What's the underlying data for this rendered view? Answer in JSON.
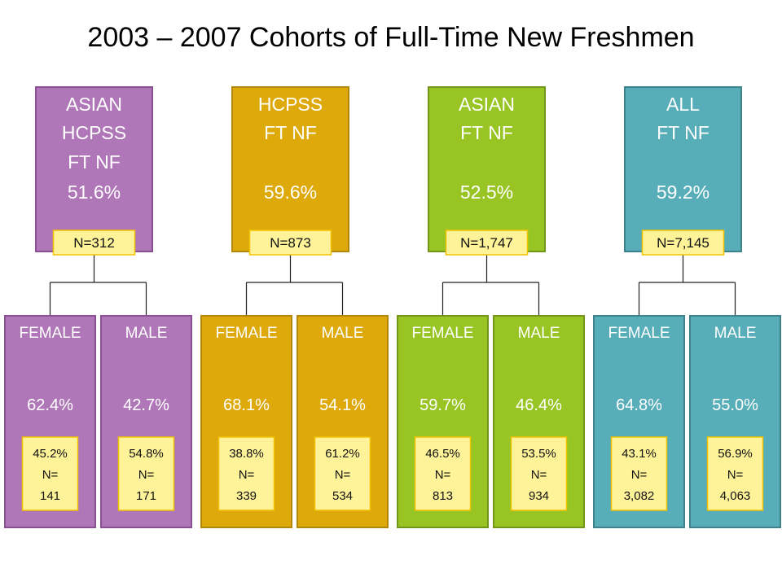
{
  "title": "2003 – 2007 Cohorts of Full-Time New Freshmen",
  "badge_color": "#fff399",
  "badge_border": "#f2c200",
  "groups": [
    {
      "color": "#b077b8",
      "border": "#8b4f93",
      "lines": [
        "ASIAN",
        "HCPSS",
        "FT NF",
        "51.6%"
      ],
      "n": "N=312",
      "children": [
        {
          "label": "FEMALE",
          "pct": "62.4%",
          "share": "45.2%",
          "n_label": "N=",
          "n": "141"
        },
        {
          "label": "MALE",
          "pct": "42.7%",
          "share": "54.8%",
          "n_label": "N=",
          "n": "171"
        }
      ]
    },
    {
      "color": "#dda90b",
      "border": "#b3870a",
      "lines": [
        "HCPSS",
        "FT NF",
        "",
        "59.6%"
      ],
      "n": "N=873",
      "children": [
        {
          "label": "FEMALE",
          "pct": "68.1%",
          "share": "38.8%",
          "n_label": "N=",
          "n": "339"
        },
        {
          "label": "MALE",
          "pct": "54.1%",
          "share": "61.2%",
          "n_label": "N=",
          "n": "534"
        }
      ]
    },
    {
      "color": "#98c524",
      "border": "#73961a",
      "lines": [
        "ASIAN",
        "FT NF",
        "",
        "52.5%"
      ],
      "n": "N=1,747",
      "children": [
        {
          "label": "FEMALE",
          "pct": "59.7%",
          "share": "46.5%",
          "n_label": "N=",
          "n": "813"
        },
        {
          "label": "MALE",
          "pct": "46.4%",
          "share": "53.5%",
          "n_label": "N=",
          "n": "934"
        }
      ]
    },
    {
      "color": "#57adb8",
      "border": "#3c838c",
      "lines": [
        "ALL",
        "FT NF",
        "",
        "59.2%"
      ],
      "n": "N=7,145",
      "children": [
        {
          "label": "FEMALE",
          "pct": "64.8%",
          "share": "43.1%",
          "n_label": "N=",
          "n": "3,082"
        },
        {
          "label": "MALE",
          "pct": "55.0%",
          "share": "56.9%",
          "n_label": "N=",
          "n": "4,063"
        }
      ]
    }
  ]
}
